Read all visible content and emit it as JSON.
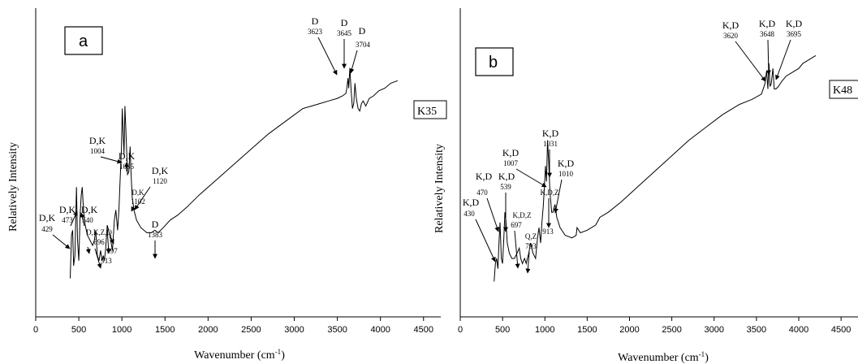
{
  "chart_data": [
    {
      "type": "line",
      "panel_label": "a",
      "sample_label": "K35",
      "xlabel": "Wavenumber (cm",
      "xlabel_sup": "-1",
      "xlabel_close": ")",
      "ylabel": "Relatively Intensity",
      "xlim": [
        0,
        4700
      ],
      "ylim": [
        0,
        100
      ],
      "xticks": [
        "0",
        "500",
        "1000",
        "1500",
        "2000",
        "2500",
        "3000",
        "3500",
        "4000",
        "4500"
      ],
      "series": [
        {
          "x": [
            400,
            415,
            429,
            440,
            455,
            473,
            485,
            500,
            515,
            528,
            540,
            555,
            575,
            600,
            630,
            660,
            680,
            696,
            715,
            735,
            753,
            770,
            785,
            797,
            810,
            830,
            860,
            890,
            913,
            930,
            950,
            965,
            980,
            995,
            1004,
            1015,
            1025,
            1035,
            1050,
            1065,
            1080,
            1095,
            1102,
            1112,
            1120,
            1140,
            1170,
            1220,
            1290,
            1340,
            1383,
            1420,
            1480,
            1560,
            1650,
            1750,
            1900,
            2100,
            2300,
            2500,
            2700,
            2900,
            3100,
            3300,
            3400,
            3500,
            3560,
            3600,
            3610,
            3623,
            3632,
            3645,
            3660,
            3675,
            3690,
            3704,
            3720,
            3740,
            3760,
            3780,
            3800,
            3830,
            3870,
            3920,
            3980,
            4050,
            4120,
            4200
          ],
          "y": [
            3,
            20,
            22,
            8,
            12,
            39,
            18,
            10,
            28,
            36,
            39,
            30,
            24,
            20,
            18,
            16,
            18,
            22,
            12,
            10,
            14,
            10,
            12,
            10,
            14,
            24,
            20,
            14,
            26,
            30,
            22,
            30,
            42,
            54,
            70,
            60,
            52,
            71,
            58,
            44,
            45,
            55,
            48,
            40,
            35,
            30,
            26,
            23,
            21,
            21,
            22,
            21,
            23,
            26,
            28,
            31,
            36,
            42,
            48,
            54,
            60,
            65,
            70,
            72,
            73,
            74,
            75,
            76,
            78,
            82,
            78,
            86,
            77,
            70,
            72,
            80,
            74,
            70,
            69,
            72,
            73,
            71,
            74,
            75,
            77,
            78,
            80,
            81
          ]
        }
      ],
      "annotations": [
        {
          "group": "D,K",
          "wavenumber": "429",
          "x": 429
        },
        {
          "group": "D,K",
          "wavenumber": "473",
          "x": 473
        },
        {
          "group": "D,K",
          "wavenumber": "540",
          "x": 540
        },
        {
          "group": "D,K,Z,Q",
          "wavenumber": "753",
          "x": 753
        },
        {
          "group": "",
          "wavenumber": "696",
          "x": 696
        },
        {
          "group": "",
          "wavenumber": "913",
          "x": 913
        },
        {
          "group": "",
          "wavenumber": "797",
          "x": 797
        },
        {
          "group": "D,K",
          "wavenumber": "1004",
          "x": 1004
        },
        {
          "group": "D,K",
          "wavenumber": "1035",
          "x": 1035
        },
        {
          "group": "D,K",
          "wavenumber": "1102",
          "x": 1102
        },
        {
          "group": "D,K",
          "wavenumber": "1120",
          "x": 1120
        },
        {
          "group": "D",
          "wavenumber": "1383",
          "x": 1383
        },
        {
          "group": "D",
          "wavenumber": "3623",
          "x": 3623
        },
        {
          "group": "D",
          "wavenumber": "3645",
          "x": 3645
        },
        {
          "group": "D",
          "wavenumber": "3704",
          "x": 3704
        }
      ]
    },
    {
      "type": "line",
      "panel_label": "b",
      "sample_label": "K48",
      "xlabel": "Wavenumber (cm",
      "xlabel_sup": "-1",
      "xlabel_close": ")",
      "ylabel": "Relatively Intensity",
      "xlim": [
        0,
        4700
      ],
      "ylim": [
        0,
        100
      ],
      "xticks": [
        "0",
        "500",
        "1000",
        "1500",
        "2000",
        "2500",
        "3000",
        "3500",
        "4000",
        "4500"
      ],
      "series": [
        {
          "x": [
            400,
            415,
            430,
            445,
            458,
            470,
            485,
            500,
            515,
            528,
            539,
            555,
            580,
            610,
            640,
            670,
            697,
            715,
            735,
            760,
            780,
            793,
            810,
            830,
            860,
            890,
            913,
            930,
            950,
            965,
            980,
            995,
            1007,
            1020,
            1031,
            1045,
            1060,
            1080,
            1095,
            1110,
            1120,
            1140,
            1180,
            1240,
            1320,
            1370,
            1380,
            1420,
            1500,
            1600,
            1650,
            1750,
            1900,
            2100,
            2300,
            2500,
            2700,
            2900,
            3100,
            3300,
            3450,
            3560,
            3600,
            3620,
            3635,
            3648,
            3660,
            3675,
            3695,
            3710,
            3730,
            3760,
            3800,
            3850,
            3900,
            3950,
            4000,
            4050,
            4100,
            4150,
            4200
          ],
          "y": [
            3,
            10,
            12,
            8,
            18,
            26,
            12,
            10,
            20,
            30,
            27,
            18,
            14,
            12,
            12,
            14,
            16,
            12,
            10,
            12,
            10,
            12,
            14,
            18,
            14,
            12,
            20,
            24,
            18,
            26,
            32,
            40,
            48,
            42,
            58,
            50,
            38,
            30,
            30,
            32,
            33,
            28,
            24,
            21,
            20,
            21,
            24,
            22,
            23,
            25,
            28,
            30,
            34,
            40,
            46,
            52,
            58,
            63,
            68,
            72,
            74,
            76,
            80,
            85,
            78,
            88,
            79,
            80,
            86,
            78,
            78,
            79,
            81,
            83,
            84,
            85,
            86,
            88,
            89,
            90,
            91
          ]
        }
      ],
      "annotations": [
        {
          "group": "K,D",
          "wavenumber": "430",
          "x": 430
        },
        {
          "group": "K,D",
          "wavenumber": "470",
          "x": 470
        },
        {
          "group": "K,D",
          "wavenumber": "539",
          "x": 539
        },
        {
          "group": "K,D,Z",
          "wavenumber": "697",
          "x": 697
        },
        {
          "group": "Q,Z",
          "wavenumber": "793",
          "x": 793
        },
        {
          "group": "K,D,Z",
          "wavenumber": "913",
          "x": 913
        },
        {
          "group": "K,D",
          "wavenumber": "1007",
          "x": 1007
        },
        {
          "group": "K,D",
          "wavenumber": "1031",
          "x": 1031
        },
        {
          "group": "K,D",
          "wavenumber": "1010",
          "x": 1010
        },
        {
          "group": "K,D",
          "wavenumber": "3620",
          "x": 3620
        },
        {
          "group": "K,D",
          "wavenumber": "3648",
          "x": 3648
        },
        {
          "group": "K,D",
          "wavenumber": "3695",
          "x": 3695
        }
      ]
    }
  ]
}
